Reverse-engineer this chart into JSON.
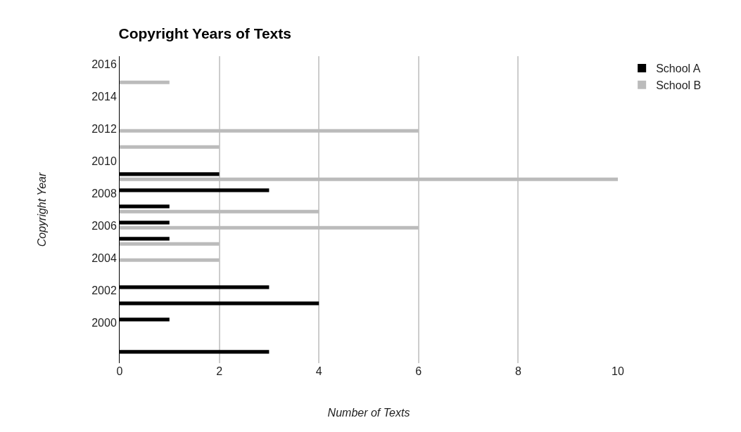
{
  "chart_data": {
    "type": "bar",
    "orientation": "horizontal",
    "title": "Copyright Years of Texts",
    "xlabel": "Number of Texts",
    "ylabel": "Copyright Year",
    "series": [
      {
        "name": "School A",
        "color": "#000000",
        "x": [
          1998,
          2000,
          2001,
          2002,
          2005,
          2006,
          2007,
          2008,
          2009
        ],
        "values": [
          3,
          1,
          4,
          3,
          1,
          1,
          1,
          3,
          2
        ]
      },
      {
        "name": "School B",
        "color": "#bbbbbb",
        "x": [
          2004,
          2005,
          2006,
          2007,
          2009,
          2011,
          2012,
          2015
        ],
        "values": [
          2,
          2,
          6,
          4,
          10,
          2,
          6,
          1
        ]
      }
    ],
    "xlim": [
      0,
      10
    ],
    "xticks": [
      0,
      2,
      4,
      6,
      8,
      10
    ],
    "ylim": [
      1997.5,
      2016.5
    ],
    "yticks": [
      2000,
      2002,
      2004,
      2006,
      2008,
      2010,
      2012,
      2014,
      2016
    ],
    "grid": "x",
    "legend": "top right"
  }
}
